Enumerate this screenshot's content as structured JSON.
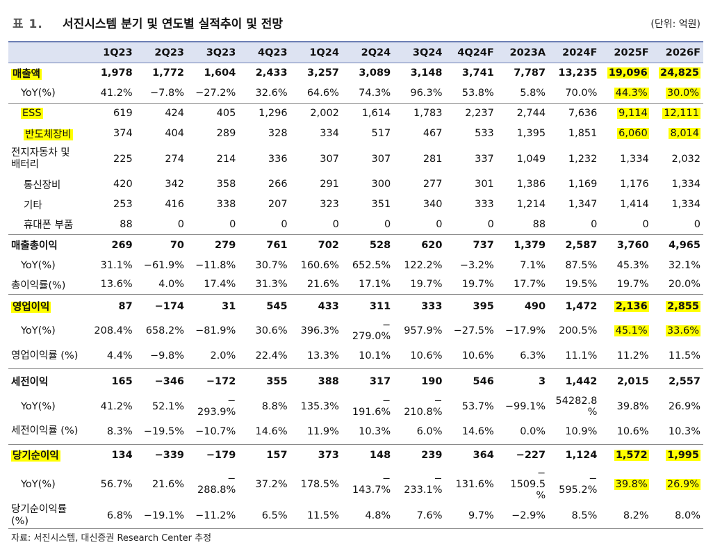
{
  "title": {
    "number": "표 1.",
    "text": "서진시스템 분기 및 연도별 실적추이 및 전망",
    "unit": "(단위: 억원)"
  },
  "headers": [
    "1Q23",
    "2Q23",
    "3Q23",
    "4Q23",
    "1Q24",
    "2Q24",
    "3Q24",
    "4Q24F",
    "2023A",
    "2024F",
    "2025F",
    "2026F"
  ],
  "rows": [
    {
      "label": "매출액",
      "values": [
        "1,978",
        "1,772",
        "1,604",
        "2,433",
        "3,257",
        "3,089",
        "3,148",
        "3,741",
        "7,787",
        "13,235",
        "19,096",
        "24,825"
      ]
    },
    {
      "label": "YoY(%)",
      "values": [
        "41.2%",
        "−7.8%",
        "−27.2%",
        "32.6%",
        "64.6%",
        "74.3%",
        "96.3%",
        "53.8%",
        "5.8%",
        "70.0%",
        "44.3%",
        "30.0%"
      ]
    },
    {
      "label": "ESS",
      "values": [
        "619",
        "424",
        "405",
        "1,296",
        "2,002",
        "1,614",
        "1,783",
        "2,237",
        "2,744",
        "7,636",
        "9,114",
        "12,111"
      ]
    },
    {
      "label": "반도체장비",
      "values": [
        "374",
        "404",
        "289",
        "328",
        "334",
        "517",
        "467",
        "533",
        "1,395",
        "1,851",
        "6,060",
        "8,014"
      ]
    },
    {
      "label": "전지자동차 및 배터리",
      "values": [
        "225",
        "274",
        "214",
        "336",
        "307",
        "307",
        "281",
        "337",
        "1,049",
        "1,232",
        "1,334",
        "2,032"
      ]
    },
    {
      "label": "통신장비",
      "values": [
        "420",
        "342",
        "358",
        "266",
        "291",
        "300",
        "277",
        "301",
        "1,386",
        "1,169",
        "1,176",
        "1,334"
      ]
    },
    {
      "label": "기타",
      "values": [
        "253",
        "416",
        "338",
        "207",
        "323",
        "351",
        "340",
        "333",
        "1,214",
        "1,347",
        "1,414",
        "1,334"
      ]
    },
    {
      "label": "휴대폰 부품",
      "values": [
        "88",
        "0",
        "0",
        "0",
        "0",
        "0",
        "0",
        "0",
        "88",
        "0",
        "0",
        "0"
      ]
    },
    {
      "label": "매출총이익",
      "values": [
        "269",
        "70",
        "279",
        "761",
        "702",
        "528",
        "620",
        "737",
        "1,379",
        "2,587",
        "3,760",
        "4,965"
      ]
    },
    {
      "label": "YoY(%)",
      "values": [
        "31.1%",
        "−61.9%",
        "−11.8%",
        "30.7%",
        "160.6%",
        "652.5%",
        "122.2%",
        "−3.2%",
        "7.1%",
        "87.5%",
        "45.3%",
        "32.1%"
      ]
    },
    {
      "label": "총이익률(%)",
      "values": [
        "13.6%",
        "4.0%",
        "17.4%",
        "31.3%",
        "21.6%",
        "17.1%",
        "19.7%",
        "19.7%",
        "17.7%",
        "19.5%",
        "19.7%",
        "20.0%"
      ]
    },
    {
      "label": "영업이익",
      "values": [
        "87",
        "−174",
        "31",
        "545",
        "433",
        "311",
        "333",
        "395",
        "490",
        "1,472",
        "2,136",
        "2,855"
      ]
    },
    {
      "label": "YoY(%)",
      "values": [
        "208.4%",
        "658.2%",
        "−81.9%",
        "30.6%",
        "396.3%",
        "−\n279.0%",
        "957.9%",
        "−27.5%",
        "−17.9%",
        "200.5%",
        "45.1%",
        "33.6%"
      ]
    },
    {
      "label": "영업이익률 (%)",
      "values": [
        "4.4%",
        "−9.8%",
        "2.0%",
        "22.4%",
        "13.3%",
        "10.1%",
        "10.6%",
        "10.6%",
        "6.3%",
        "11.1%",
        "11.2%",
        "11.5%"
      ]
    },
    {
      "label": "세전이익",
      "values": [
        "165",
        "−346",
        "−172",
        "355",
        "388",
        "317",
        "190",
        "546",
        "3",
        "1,442",
        "2,015",
        "2,557"
      ]
    },
    {
      "label": "YoY(%)",
      "values": [
        "41.2%",
        "52.1%",
        "−\n293.9%",
        "8.8%",
        "135.3%",
        "−\n191.6%",
        "−\n210.8%",
        "53.7%",
        "−99.1%",
        "54282.8\n%",
        "39.8%",
        "26.9%"
      ]
    },
    {
      "label": "세전이익률 (%)",
      "values": [
        "8.3%",
        "−19.5%",
        "−10.7%",
        "14.6%",
        "11.9%",
        "10.3%",
        "6.0%",
        "14.6%",
        "0.0%",
        "10.9%",
        "10.6%",
        "10.3%"
      ]
    },
    {
      "label": "당기순이익",
      "values": [
        "134",
        "−339",
        "−179",
        "157",
        "373",
        "148",
        "239",
        "364",
        "−227",
        "1,124",
        "1,572",
        "1,995"
      ]
    },
    {
      "label": "YoY(%)",
      "values": [
        "56.7%",
        "21.6%",
        "−\n288.8%",
        "37.2%",
        "178.5%",
        "−\n143.7%",
        "−\n233.1%",
        "131.6%",
        "−\n1509.5\n%",
        "−\n595.2%",
        "39.8%",
        "26.9%"
      ]
    },
    {
      "label": "당기순이익률 (%)",
      "values": [
        "6.8%",
        "−19.1%",
        "−11.2%",
        "6.5%",
        "11.5%",
        "4.8%",
        "7.6%",
        "9.7%",
        "−2.9%",
        "8.5%",
        "8.2%",
        "8.0%"
      ]
    }
  ],
  "highlights": {
    "color": "#ffff00"
  },
  "source": "자료: 서진시스템, 대신증권 Research Center 추정"
}
